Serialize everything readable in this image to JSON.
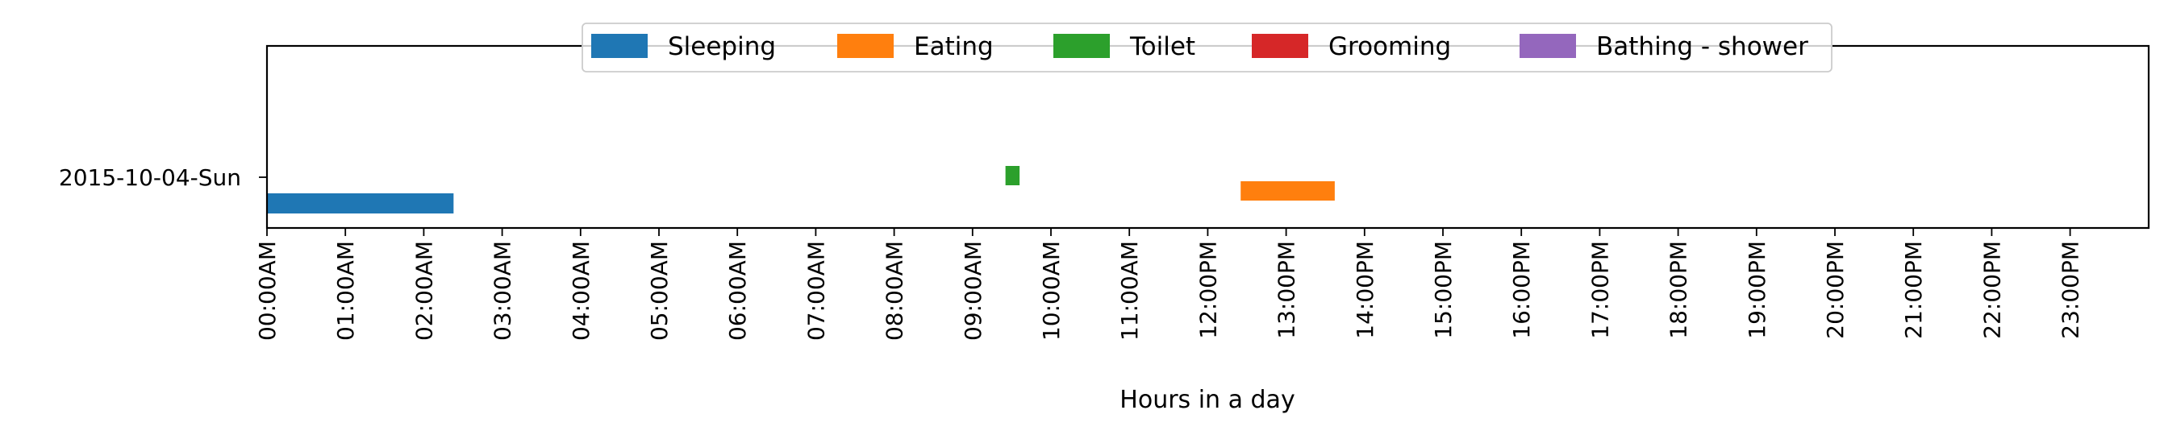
{
  "chart_data": {
    "type": "timeline",
    "xlabel": "Hours in a day",
    "ylabel": "",
    "title": "",
    "xlim": [
      0,
      24
    ],
    "x_ticks": [
      "00:00AM",
      "01:00AM",
      "02:00AM",
      "03:00AM",
      "04:00AM",
      "05:00AM",
      "06:00AM",
      "07:00AM",
      "08:00AM",
      "09:00AM",
      "10:00AM",
      "11:00AM",
      "12:00PM",
      "13:00PM",
      "14:00PM",
      "15:00PM",
      "16:00PM",
      "17:00PM",
      "18:00PM",
      "19:00PM",
      "20:00PM",
      "21:00PM",
      "22:00PM",
      "23:00PM"
    ],
    "categories": [
      "2015-10-04-Sun"
    ],
    "legend_position": "top-center",
    "grid": false,
    "series": [
      {
        "name": "Sleeping",
        "color": "#1f77b4",
        "intervals": [
          {
            "start": 0.0,
            "end": 2.38
          }
        ]
      },
      {
        "name": "Eating",
        "color": "#ff7f0e",
        "intervals": [
          {
            "start": 12.42,
            "end": 13.62
          }
        ]
      },
      {
        "name": "Toilet",
        "color": "#2ca02c",
        "intervals": [
          {
            "start": 9.42,
            "end": 9.6
          }
        ]
      },
      {
        "name": "Grooming",
        "color": "#d62728",
        "intervals": []
      },
      {
        "name": "Bathing - shower",
        "color": "#9467bd",
        "intervals": []
      }
    ]
  }
}
